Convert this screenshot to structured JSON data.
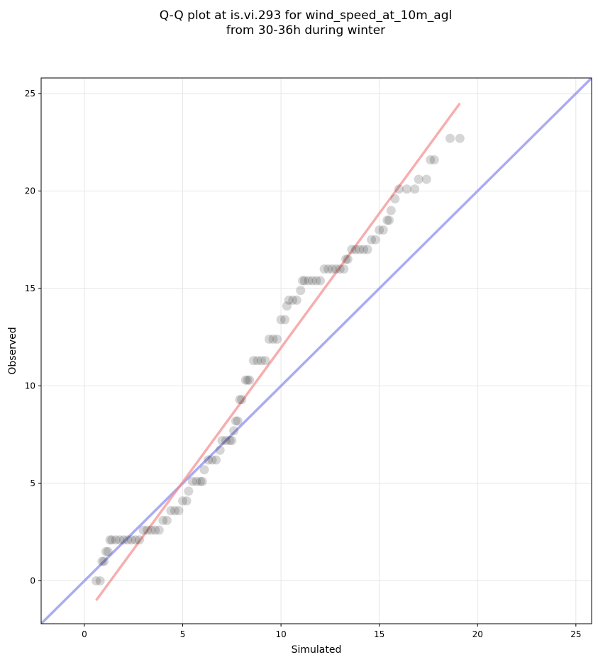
{
  "chart_data": {
    "type": "scatter",
    "title": "Q-Q plot at is.vi.293 for wind_speed_at_10m_agl",
    "subtitle": "from 30-36h during winter",
    "xlabel": "Simulated",
    "ylabel": "Observed",
    "xlim": [
      -2.2,
      25.8
    ],
    "ylim": [
      -2.2,
      25.8
    ],
    "xticks": [
      0,
      5,
      10,
      15,
      20,
      25
    ],
    "yticks": [
      0,
      5,
      10,
      15,
      20,
      25
    ],
    "xtick_labels": [
      "0",
      "5",
      "10",
      "15",
      "20",
      "25"
    ],
    "ytick_labels": [
      "0",
      "5",
      "10",
      "15",
      "20",
      "25"
    ],
    "grid": true,
    "colors": {
      "points": "#333333",
      "identity_line": "#8888ee",
      "fit_line": "#f28b8b"
    },
    "series": [
      {
        "kind": "points",
        "x": [
          0.6,
          0.8,
          0.9,
          1.0,
          1.1,
          1.2,
          1.3,
          1.4,
          1.6,
          1.8,
          2.0,
          2.2,
          2.4,
          2.6,
          2.8,
          3.0,
          3.2,
          3.4,
          3.6,
          3.8,
          4.0,
          4.2,
          4.4,
          4.6,
          4.8,
          5.0,
          5.2,
          5.3,
          5.5,
          5.7,
          5.9,
          6.0,
          6.1,
          6.3,
          6.5,
          6.7,
          6.9,
          7.0,
          7.2,
          7.4,
          7.5,
          7.6,
          7.7,
          7.8,
          7.9,
          8.0,
          8.2,
          8.3,
          8.4,
          8.6,
          8.8,
          9.0,
          9.2,
          9.4,
          9.6,
          9.8,
          10.0,
          10.2,
          10.3,
          10.4,
          10.6,
          10.8,
          11.0,
          11.1,
          11.2,
          11.4,
          11.6,
          11.8,
          12.0,
          12.2,
          12.4,
          12.6,
          12.8,
          13.0,
          13.2,
          13.3,
          13.4,
          13.6,
          13.8,
          14.0,
          14.2,
          14.4,
          14.6,
          14.8,
          15.0,
          15.2,
          15.4,
          15.5,
          15.6,
          15.8,
          16.0,
          16.4,
          16.8,
          17.0,
          17.4,
          17.6,
          17.8,
          18.6,
          19.1
        ],
        "y": [
          0.0,
          0.0,
          1.0,
          1.0,
          1.5,
          1.5,
          2.1,
          2.1,
          2.1,
          2.1,
          2.1,
          2.1,
          2.1,
          2.1,
          2.1,
          2.6,
          2.6,
          2.6,
          2.6,
          2.6,
          3.1,
          3.1,
          3.6,
          3.6,
          3.6,
          4.1,
          4.1,
          4.6,
          5.1,
          5.1,
          5.1,
          5.1,
          5.7,
          6.2,
          6.2,
          6.2,
          6.7,
          7.2,
          7.2,
          7.2,
          7.2,
          7.7,
          8.2,
          8.2,
          9.3,
          9.3,
          10.3,
          10.3,
          10.3,
          11.3,
          11.3,
          11.3,
          11.3,
          12.4,
          12.4,
          12.4,
          13.4,
          13.4,
          14.1,
          14.4,
          14.4,
          14.4,
          14.9,
          15.4,
          15.4,
          15.4,
          15.4,
          15.4,
          15.4,
          16.0,
          16.0,
          16.0,
          16.0,
          16.0,
          16.0,
          16.5,
          16.5,
          17.0,
          17.0,
          17.0,
          17.0,
          17.0,
          17.5,
          17.5,
          18.0,
          18.0,
          18.5,
          18.5,
          19.0,
          19.6,
          20.1,
          20.1,
          20.1,
          20.6,
          20.6,
          21.6,
          21.6,
          22.7,
          22.7
        ]
      },
      {
        "kind": "line",
        "role": "identity",
        "x": [
          -2.2,
          25.8
        ],
        "y": [
          -2.2,
          25.8
        ]
      },
      {
        "kind": "line",
        "role": "fit",
        "x": [
          0.6,
          19.1
        ],
        "y": [
          -1.0,
          24.5
        ]
      }
    ]
  }
}
